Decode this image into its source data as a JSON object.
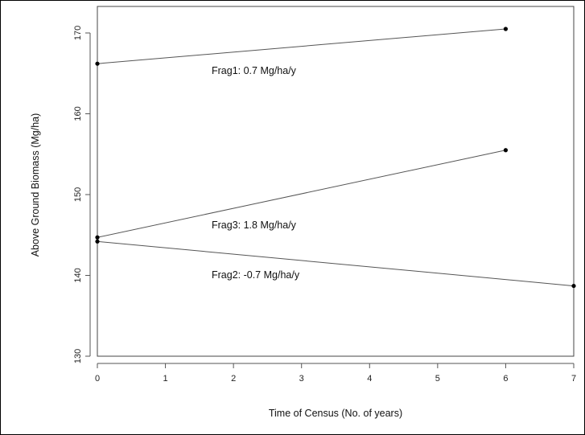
{
  "chart_data": {
    "type": "line",
    "title": "",
    "xlabel": "Time of Census (No. of years)",
    "ylabel": "Above Ground Biomass (Mg/ha)",
    "xlim": [
      0,
      7
    ],
    "ylim": [
      130,
      170
    ],
    "xticks": [
      "0",
      "1",
      "2",
      "3",
      "4",
      "5",
      "6",
      "7"
    ],
    "yticks": [
      "130",
      "140",
      "150",
      "160",
      "170"
    ],
    "grid": false,
    "series": [
      {
        "x": [
          0,
          6
        ],
        "y": [
          166.2,
          170.5
        ],
        "label": "Frag1: 0.7 Mg/ha/y"
      },
      {
        "x": [
          0,
          7
        ],
        "y": [
          144.2,
          138.7
        ],
        "label": "Frag2: -0.7 Mg/ha/y"
      },
      {
        "x": [
          0,
          6
        ],
        "y": [
          144.7,
          155.5
        ],
        "label": "Frag3:  1.8 Mg/ha/y"
      }
    ]
  }
}
